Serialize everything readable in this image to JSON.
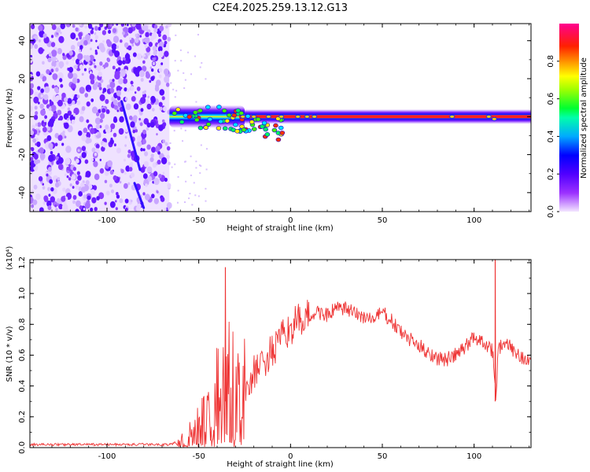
{
  "title": "C2E4.2025.259.13.12.G13",
  "chart_data": [
    {
      "type": "heatmap",
      "xlabel": "Height of straight line (km)",
      "ylabel": "Frequency (Hz)",
      "xlim": [
        -142,
        131
      ],
      "ylim": [
        -50,
        49
      ],
      "xticks": [
        -100,
        -50,
        0,
        50,
        100
      ],
      "xtick_labels": [
        "-100",
        "-50",
        "0",
        "50",
        "100"
      ],
      "yticks": [
        -40,
        -20,
        0,
        20,
        40
      ],
      "ytick_labels": [
        "-40",
        "-20",
        "0",
        "20",
        "40"
      ],
      "colorbar": {
        "label": "Normalized spectral amplitude",
        "range": [
          0,
          1
        ],
        "ticks": [
          0,
          0.2,
          0.4,
          0.6,
          0.8
        ],
        "tick_labels": [
          "0.0",
          "0.2",
          "0.4",
          "0.6",
          "0.8"
        ],
        "colors": [
          "#f3e6ff",
          "#8000ff",
          "#0000ff",
          "#00c8ff",
          "#00ff80",
          "#60ff00",
          "#ffff00",
          "#ff8000",
          "#ff0000",
          "#ff0080"
        ]
      },
      "noise_region_x": [
        -142,
        -66
      ],
      "band_center_hz": 0,
      "band_color_core": "#ff2020",
      "band_color_edge": "#3000ff"
    },
    {
      "type": "line",
      "xlabel": "Height of straight line (km)",
      "ylabel": "SNR (10 * v/v)",
      "scale_label": "(x10⁴)",
      "xlim": [
        -142,
        131
      ],
      "ylim": [
        0,
        1.22
      ],
      "xticks": [
        -100,
        -50,
        0,
        50,
        100
      ],
      "xtick_labels": [
        "-100",
        "-50",
        "0",
        "50",
        "100"
      ],
      "yticks": [
        0,
        0.2,
        0.4,
        0.6,
        0.8,
        1.0,
        1.2
      ],
      "ytick_labels": [
        "0.0",
        "0.2",
        "0.4",
        "0.6",
        "0.8",
        "1.0",
        "1.2"
      ],
      "line_color": "#ee3333",
      "series": [
        {
          "name": "SNR",
          "x": [
            -142,
            -120,
            -100,
            -80,
            -66,
            -60,
            -55,
            -50,
            -45,
            -40,
            -36,
            -34,
            -32,
            -30,
            -25,
            -20,
            -15,
            -10,
            -5,
            0,
            5,
            10,
            15,
            20,
            25,
            30,
            35,
            40,
            45,
            50,
            55,
            60,
            65,
            70,
            75,
            80,
            85,
            90,
            95,
            100,
            103,
            106,
            108,
            110,
            111,
            112,
            113,
            115,
            120,
            125,
            131
          ],
          "values": [
            0.02,
            0.02,
            0.02,
            0.02,
            0.02,
            0.04,
            0.1,
            0.15,
            0.22,
            0.35,
            0.55,
            0.6,
            0.45,
            0.3,
            0.38,
            0.48,
            0.55,
            0.62,
            0.7,
            0.78,
            0.82,
            0.85,
            0.88,
            0.86,
            0.9,
            0.9,
            0.87,
            0.85,
            0.83,
            0.88,
            0.82,
            0.75,
            0.7,
            0.66,
            0.62,
            0.58,
            0.57,
            0.6,
            0.65,
            0.72,
            0.7,
            0.68,
            0.66,
            0.63,
            0.5,
            0.3,
            0.63,
            0.67,
            0.65,
            0.6,
            0.55
          ]
        }
      ],
      "spikes": [
        {
          "x": -35.5,
          "value": 1.17
        },
        {
          "x": 111.5,
          "value": 1.22
        }
      ]
    }
  ]
}
